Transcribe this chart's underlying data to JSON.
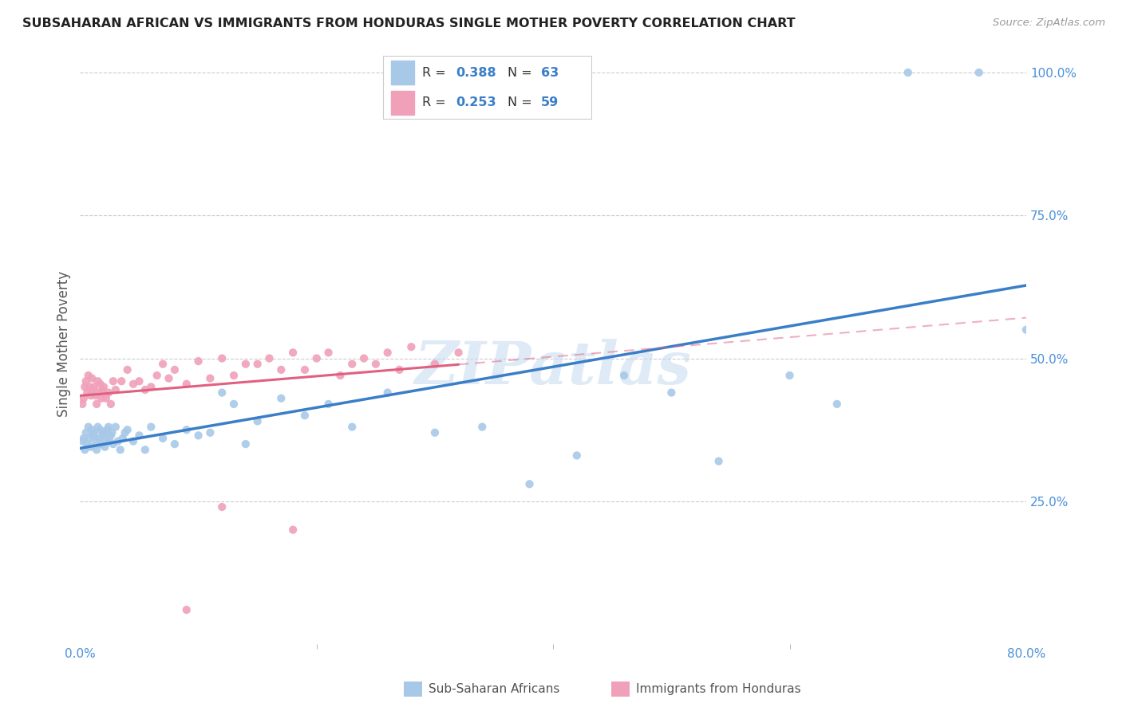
{
  "title": "SUBSAHARAN AFRICAN VS IMMIGRANTS FROM HONDURAS SINGLE MOTHER POVERTY CORRELATION CHART",
  "source": "Source: ZipAtlas.com",
  "ylabel": "Single Mother Poverty",
  "xlim": [
    0.0,
    0.8
  ],
  "ylim": [
    0.0,
    1.05
  ],
  "blue_color": "#A8C8E8",
  "pink_color": "#F0A0B8",
  "blue_line_color": "#3A7EC8",
  "pink_line_color": "#E06080",
  "watermark": "ZIPatlas",
  "blue_scatter_x": [
    0.002,
    0.003,
    0.004,
    0.005,
    0.006,
    0.007,
    0.008,
    0.009,
    0.01,
    0.011,
    0.012,
    0.013,
    0.014,
    0.015,
    0.016,
    0.017,
    0.018,
    0.019,
    0.02,
    0.021,
    0.022,
    0.023,
    0.024,
    0.025,
    0.026,
    0.027,
    0.028,
    0.03,
    0.032,
    0.034,
    0.036,
    0.038,
    0.04,
    0.045,
    0.05,
    0.055,
    0.06,
    0.07,
    0.08,
    0.09,
    0.1,
    0.11,
    0.12,
    0.13,
    0.14,
    0.15,
    0.17,
    0.19,
    0.21,
    0.23,
    0.26,
    0.3,
    0.34,
    0.38,
    0.42,
    0.46,
    0.5,
    0.54,
    0.6,
    0.64,
    0.7,
    0.76,
    0.8
  ],
  "blue_scatter_y": [
    0.355,
    0.36,
    0.34,
    0.37,
    0.35,
    0.38,
    0.36,
    0.345,
    0.375,
    0.365,
    0.37,
    0.355,
    0.34,
    0.38,
    0.36,
    0.375,
    0.35,
    0.365,
    0.37,
    0.345,
    0.36,
    0.375,
    0.38,
    0.355,
    0.365,
    0.37,
    0.35,
    0.38,
    0.355,
    0.34,
    0.36,
    0.37,
    0.375,
    0.355,
    0.365,
    0.34,
    0.38,
    0.36,
    0.35,
    0.375,
    0.365,
    0.37,
    0.44,
    0.42,
    0.35,
    0.39,
    0.43,
    0.4,
    0.42,
    0.38,
    0.44,
    0.37,
    0.38,
    0.28,
    0.33,
    0.47,
    0.44,
    0.32,
    0.47,
    0.42,
    1.0,
    1.0,
    0.55
  ],
  "pink_scatter_x": [
    0.002,
    0.003,
    0.004,
    0.005,
    0.006,
    0.007,
    0.008,
    0.009,
    0.01,
    0.011,
    0.012,
    0.013,
    0.014,
    0.015,
    0.016,
    0.017,
    0.018,
    0.019,
    0.02,
    0.022,
    0.024,
    0.026,
    0.028,
    0.03,
    0.035,
    0.04,
    0.045,
    0.05,
    0.055,
    0.06,
    0.065,
    0.07,
    0.075,
    0.08,
    0.09,
    0.1,
    0.11,
    0.12,
    0.13,
    0.14,
    0.15,
    0.16,
    0.17,
    0.18,
    0.19,
    0.2,
    0.21,
    0.22,
    0.23,
    0.24,
    0.25,
    0.26,
    0.27,
    0.28,
    0.3,
    0.32,
    0.12,
    0.18,
    0.09
  ],
  "pink_scatter_y": [
    0.42,
    0.43,
    0.45,
    0.46,
    0.44,
    0.47,
    0.45,
    0.435,
    0.465,
    0.445,
    0.45,
    0.435,
    0.42,
    0.46,
    0.44,
    0.455,
    0.43,
    0.445,
    0.45,
    0.43,
    0.44,
    0.42,
    0.46,
    0.445,
    0.46,
    0.48,
    0.455,
    0.46,
    0.445,
    0.45,
    0.47,
    0.49,
    0.465,
    0.48,
    0.455,
    0.495,
    0.465,
    0.5,
    0.47,
    0.49,
    0.49,
    0.5,
    0.48,
    0.51,
    0.48,
    0.5,
    0.51,
    0.47,
    0.49,
    0.5,
    0.49,
    0.51,
    0.48,
    0.52,
    0.49,
    0.51,
    0.24,
    0.2,
    0.06
  ],
  "blue_R": "0.388",
  "blue_N": "63",
  "pink_R": "0.253",
  "pink_N": "59"
}
